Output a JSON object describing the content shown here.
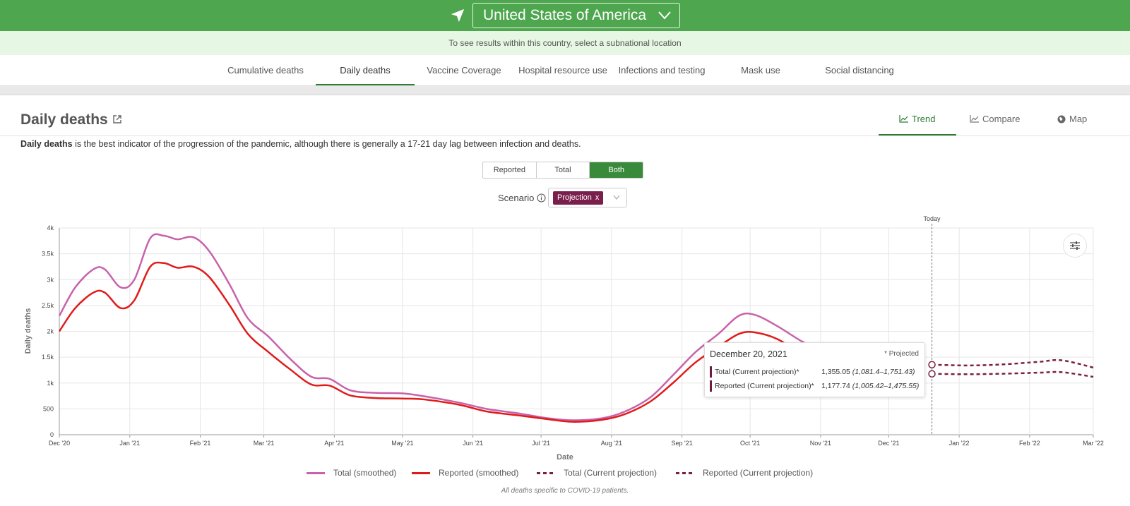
{
  "header": {
    "country": "United States of America",
    "subnote": "To see results within this country, select a subnational location"
  },
  "nav": {
    "tabs": [
      "Cumulative deaths",
      "Daily deaths",
      "Vaccine Coverage",
      "Hospital resource use",
      "Infections and testing",
      "Mask use",
      "Social distancing"
    ],
    "active": "Daily deaths"
  },
  "section": {
    "title": "Daily deaths",
    "views": {
      "trend": "Trend",
      "compare": "Compare",
      "map": "Map"
    },
    "description_bold": "Daily deaths",
    "description_rest": " is the best indicator of the progression of the pandemic, although there is generally a 17-21 day lag between infection and deaths."
  },
  "controls": {
    "segment": [
      "Reported",
      "Total",
      "Both"
    ],
    "segment_active": "Both",
    "scenario_label": "Scenario",
    "scenario_chip": "Projection",
    "scenario_chip_remove": "x"
  },
  "tooltip": {
    "date": "December 20, 2021",
    "note": "* Projected",
    "rows": [
      {
        "label": "Total (Current projection)*",
        "value": "1,355.05",
        "range": "(1,081.4–1,751.43)"
      },
      {
        "label": "Reported (Current projection)*",
        "value": "1,177.74",
        "range": "(1,005.42–1,475.55)"
      }
    ]
  },
  "footnote": "All deaths specific to COVID-19 patients.",
  "colors": {
    "total": "#c862aa",
    "reported": "#e01b1b",
    "projection": "#7a2045",
    "accent": "#4ea64f"
  },
  "chart_data": {
    "type": "line",
    "xlabel": "Date",
    "ylabel": "Daily deaths",
    "x_ticks": [
      "Dec '20",
      "Jan '21",
      "Feb '21",
      "Mar '21",
      "Apr '21",
      "May '21",
      "Jun '21",
      "Jul '21",
      "Aug '21",
      "Sep '21",
      "Oct '21",
      "Nov '21",
      "Dec '21",
      "Jan '22",
      "Feb '22",
      "Mar '22"
    ],
    "y_ticks": [
      "0",
      "500",
      "1k",
      "1.5k",
      "2k",
      "2.5k",
      "3k",
      "3.5k",
      "4k"
    ],
    "ylim": [
      0,
      4000
    ],
    "xlim": [
      "2020-12-01",
      "2022-03-01"
    ],
    "today_label": "Today",
    "today_date": "2021-12-20",
    "grid": true,
    "legend_position": "bottom",
    "series": [
      {
        "name": "Total (smoothed)",
        "style": "solid",
        "points": [
          [
            "2020-12-01",
            2300
          ],
          [
            "2020-12-08",
            2850
          ],
          [
            "2020-12-16",
            3200
          ],
          [
            "2020-12-21",
            3200
          ],
          [
            "2020-12-28",
            2850
          ],
          [
            "2021-01-03",
            3000
          ],
          [
            "2021-01-10",
            3800
          ],
          [
            "2021-01-16",
            3850
          ],
          [
            "2021-01-22",
            3780
          ],
          [
            "2021-01-29",
            3820
          ],
          [
            "2021-02-05",
            3550
          ],
          [
            "2021-02-14",
            2900
          ],
          [
            "2021-02-22",
            2250
          ],
          [
            "2021-03-03",
            1900
          ],
          [
            "2021-03-13",
            1450
          ],
          [
            "2021-03-22",
            1120
          ],
          [
            "2021-03-30",
            1080
          ],
          [
            "2021-04-08",
            860
          ],
          [
            "2021-04-19",
            810
          ],
          [
            "2021-05-01",
            800
          ],
          [
            "2021-05-11",
            740
          ],
          [
            "2021-05-26",
            620
          ],
          [
            "2021-06-07",
            500
          ],
          [
            "2021-06-20",
            420
          ],
          [
            "2021-07-04",
            320
          ],
          [
            "2021-07-15",
            280
          ],
          [
            "2021-07-28",
            320
          ],
          [
            "2021-08-07",
            450
          ],
          [
            "2021-08-18",
            720
          ],
          [
            "2021-08-28",
            1150
          ],
          [
            "2021-09-07",
            1600
          ],
          [
            "2021-09-17",
            1950
          ],
          [
            "2021-09-26",
            2300
          ],
          [
            "2021-10-03",
            2320
          ],
          [
            "2021-10-13",
            2100
          ],
          [
            "2021-10-24",
            1800
          ],
          [
            "2021-11-03",
            1600
          ]
        ]
      },
      {
        "name": "Reported (smoothed)",
        "style": "solid",
        "points": [
          [
            "2020-12-01",
            2000
          ],
          [
            "2020-12-08",
            2450
          ],
          [
            "2020-12-16",
            2750
          ],
          [
            "2020-12-21",
            2750
          ],
          [
            "2020-12-28",
            2450
          ],
          [
            "2021-01-03",
            2600
          ],
          [
            "2021-01-10",
            3250
          ],
          [
            "2021-01-16",
            3320
          ],
          [
            "2021-01-22",
            3230
          ],
          [
            "2021-01-29",
            3250
          ],
          [
            "2021-02-05",
            3050
          ],
          [
            "2021-02-14",
            2500
          ],
          [
            "2021-02-22",
            1950
          ],
          [
            "2021-03-03",
            1600
          ],
          [
            "2021-03-13",
            1250
          ],
          [
            "2021-03-22",
            970
          ],
          [
            "2021-03-30",
            950
          ],
          [
            "2021-04-08",
            760
          ],
          [
            "2021-04-19",
            710
          ],
          [
            "2021-05-01",
            700
          ],
          [
            "2021-05-11",
            680
          ],
          [
            "2021-05-26",
            580
          ],
          [
            "2021-06-07",
            450
          ],
          [
            "2021-06-20",
            380
          ],
          [
            "2021-07-04",
            300
          ],
          [
            "2021-07-15",
            250
          ],
          [
            "2021-07-28",
            290
          ],
          [
            "2021-08-07",
            400
          ],
          [
            "2021-08-18",
            640
          ],
          [
            "2021-08-28",
            1000
          ],
          [
            "2021-09-07",
            1400
          ],
          [
            "2021-09-17",
            1700
          ],
          [
            "2021-09-26",
            1950
          ],
          [
            "2021-10-03",
            1980
          ],
          [
            "2021-10-13",
            1850
          ],
          [
            "2021-10-24",
            1550
          ],
          [
            "2021-11-03",
            1350
          ]
        ]
      },
      {
        "name": "Total (Current projection)",
        "style": "dashed",
        "points": [
          [
            "2021-12-20",
            1355
          ],
          [
            "2022-01-05",
            1340
          ],
          [
            "2022-01-20",
            1360
          ],
          [
            "2022-02-05",
            1410
          ],
          [
            "2022-02-15",
            1440
          ],
          [
            "2022-03-01",
            1300
          ]
        ]
      },
      {
        "name": "Reported (Current projection)",
        "style": "dashed",
        "points": [
          [
            "2021-12-20",
            1178
          ],
          [
            "2022-01-05",
            1170
          ],
          [
            "2022-01-20",
            1180
          ],
          [
            "2022-02-05",
            1200
          ],
          [
            "2022-02-15",
            1210
          ],
          [
            "2022-03-01",
            1120
          ]
        ]
      }
    ]
  }
}
